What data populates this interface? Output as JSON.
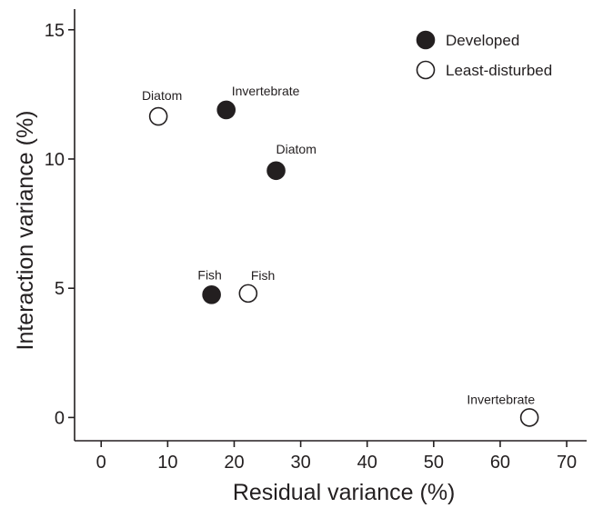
{
  "chart_data": {
    "type": "scatter",
    "title": "",
    "xlabel": "Residual variance (%)",
    "ylabel": "Interaction variance (%)",
    "xlim": [
      -4,
      73
    ],
    "ylim": [
      -0.9,
      15.8
    ],
    "xticks": [
      0,
      10,
      20,
      30,
      40,
      50,
      60,
      70
    ],
    "yticks": [
      0,
      5,
      10,
      15
    ],
    "grid": false,
    "legend_position": "top-right",
    "series": [
      {
        "name": "Developed",
        "marker": "filled-circle",
        "color": "#231f20",
        "points": [
          {
            "x": 18.8,
            "y": 11.9,
            "label": "Invertebrate"
          },
          {
            "x": 26.3,
            "y": 9.55,
            "label": "Diatom"
          },
          {
            "x": 16.6,
            "y": 4.75,
            "label": "Fish"
          }
        ]
      },
      {
        "name": "Least-disturbed",
        "marker": "open-circle",
        "color": "#231f20",
        "points": [
          {
            "x": 8.6,
            "y": 11.65,
            "label": "Diatom"
          },
          {
            "x": 22.1,
            "y": 4.8,
            "label": "Fish"
          },
          {
            "x": 64.4,
            "y": 0.0,
            "label": "Invertebrate"
          }
        ]
      }
    ]
  }
}
